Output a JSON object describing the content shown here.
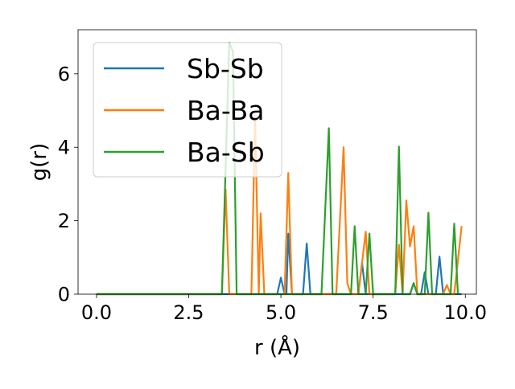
{
  "chart_data": {
    "type": "line",
    "title": "",
    "xlabel": "r (Å)",
    "ylabel": "g(r)",
    "xlim": [
      -0.5,
      10.3
    ],
    "ylim": [
      0,
      7.2
    ],
    "xticks": [
      0.0,
      2.5,
      5.0,
      7.5,
      10.0
    ],
    "xtick_labels": [
      "0.0",
      "2.5",
      "5.0",
      "7.5",
      "10.0"
    ],
    "yticks": [
      0,
      2,
      4,
      6
    ],
    "ytick_labels": [
      "0",
      "2",
      "4",
      "6"
    ],
    "grid": false,
    "legend_position": "top-left",
    "series": [
      {
        "name": "Sb-Sb",
        "color": "#1f77b4",
        "points": [
          [
            0,
            0
          ],
          [
            4.9,
            0
          ],
          [
            5.0,
            0.45
          ],
          [
            5.1,
            0
          ],
          [
            5.15,
            0
          ],
          [
            5.2,
            1.65
          ],
          [
            5.3,
            0
          ],
          [
            5.6,
            0
          ],
          [
            5.7,
            1.38
          ],
          [
            5.8,
            0
          ],
          [
            7.1,
            0
          ],
          [
            7.2,
            0.85
          ],
          [
            7.3,
            0
          ],
          [
            8.5,
            0
          ],
          [
            8.6,
            0.3
          ],
          [
            8.7,
            0
          ],
          [
            8.8,
            0
          ],
          [
            8.9,
            0.6
          ],
          [
            9.0,
            0
          ],
          [
            9.2,
            0
          ],
          [
            9.3,
            1.02
          ],
          [
            9.4,
            0
          ],
          [
            9.9,
            0
          ]
        ]
      },
      {
        "name": "Ba-Ba",
        "color": "#ff7f0e",
        "points": [
          [
            0,
            0
          ],
          [
            3.4,
            0
          ],
          [
            3.5,
            2.85
          ],
          [
            3.6,
            0
          ],
          [
            4.2,
            0
          ],
          [
            4.3,
            4.85
          ],
          [
            4.4,
            0
          ],
          [
            4.45,
            2.2
          ],
          [
            4.55,
            0
          ],
          [
            5.1,
            0
          ],
          [
            5.2,
            3.3
          ],
          [
            5.3,
            0
          ],
          [
            6.5,
            0
          ],
          [
            6.7,
            4.0
          ],
          [
            6.8,
            0.3
          ],
          [
            6.9,
            0
          ],
          [
            7.1,
            0
          ],
          [
            7.3,
            1.7
          ],
          [
            7.4,
            0
          ],
          [
            8.1,
            0
          ],
          [
            8.2,
            1.35
          ],
          [
            8.3,
            0
          ],
          [
            8.4,
            2.55
          ],
          [
            8.5,
            1.3
          ],
          [
            8.6,
            1.85
          ],
          [
            8.7,
            0
          ],
          [
            9.4,
            0
          ],
          [
            9.5,
            0.25
          ],
          [
            9.6,
            0
          ],
          [
            9.7,
            0
          ],
          [
            9.9,
            1.85
          ]
        ]
      },
      {
        "name": "Ba-Sb",
        "color": "#2ca02c",
        "points": [
          [
            0,
            0
          ],
          [
            3.4,
            0
          ],
          [
            3.6,
            6.85
          ],
          [
            3.7,
            6.6
          ],
          [
            3.8,
            0
          ],
          [
            6.1,
            0
          ],
          [
            6.3,
            4.52
          ],
          [
            6.4,
            0
          ],
          [
            6.9,
            0
          ],
          [
            7.0,
            1.85
          ],
          [
            7.1,
            0
          ],
          [
            7.3,
            0
          ],
          [
            7.4,
            1.65
          ],
          [
            7.5,
            0
          ],
          [
            8.1,
            0
          ],
          [
            8.2,
            4.02
          ],
          [
            8.3,
            0
          ],
          [
            8.5,
            0
          ],
          [
            8.6,
            0.3
          ],
          [
            8.7,
            0
          ],
          [
            8.9,
            0
          ],
          [
            9.0,
            2.22
          ],
          [
            9.1,
            0
          ],
          [
            9.6,
            0
          ],
          [
            9.7,
            1.92
          ],
          [
            9.8,
            0
          ]
        ]
      }
    ]
  }
}
